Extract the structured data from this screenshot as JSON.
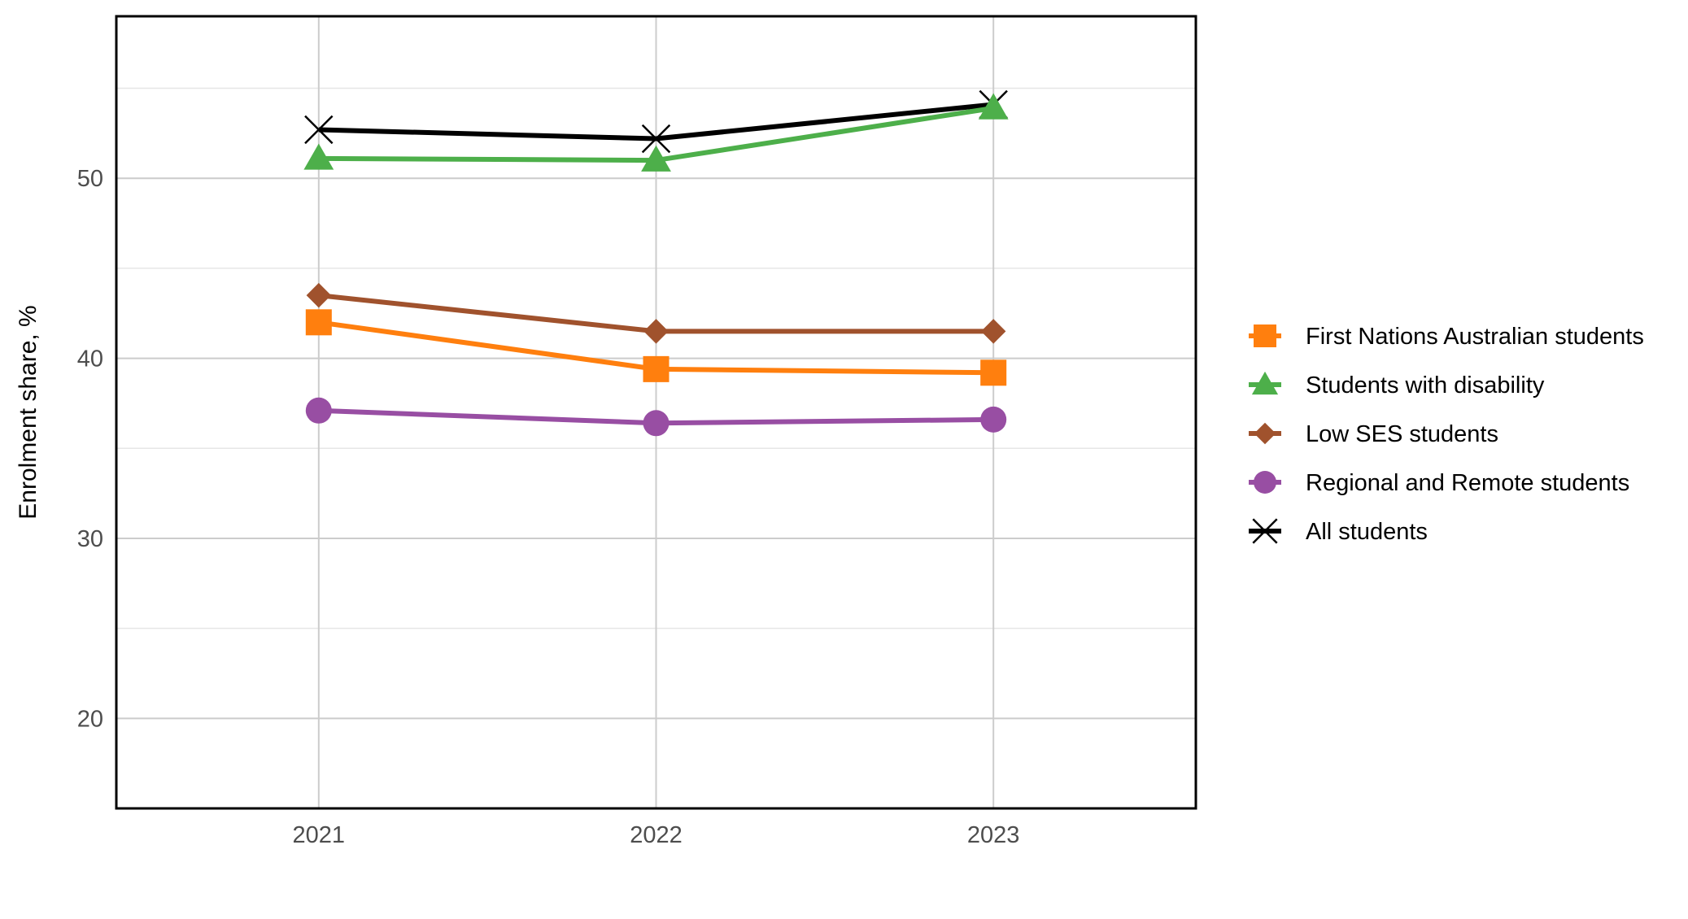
{
  "chart_data": {
    "type": "line",
    "title": "",
    "xlabel": "",
    "ylabel": "Enrolment share, %",
    "x": [
      "2021",
      "2022",
      "2023"
    ],
    "xlim": [
      2020.4,
      2023.6
    ],
    "ylim": [
      15,
      59
    ],
    "yticks": [
      20,
      30,
      40,
      50
    ],
    "grid": true,
    "legend_position": "right",
    "series": [
      {
        "name": "First Nations Australian students",
        "values": [
          42.0,
          39.4,
          39.2
        ],
        "color": "#ff7f0e",
        "marker": "square"
      },
      {
        "name": "Students with disability",
        "values": [
          51.1,
          51.0,
          53.9
        ],
        "color": "#4daf4a",
        "marker": "triangle"
      },
      {
        "name": "Low SES students",
        "values": [
          43.5,
          41.5,
          41.5
        ],
        "color": "#a0522d",
        "marker": "diamond"
      },
      {
        "name": "Regional and Remote students",
        "values": [
          37.1,
          36.4,
          36.6
        ],
        "color": "#984ea3",
        "marker": "circle"
      },
      {
        "name": "All students",
        "values": [
          52.7,
          52.2,
          54.1
        ],
        "color": "#000000",
        "marker": "x"
      }
    ]
  }
}
